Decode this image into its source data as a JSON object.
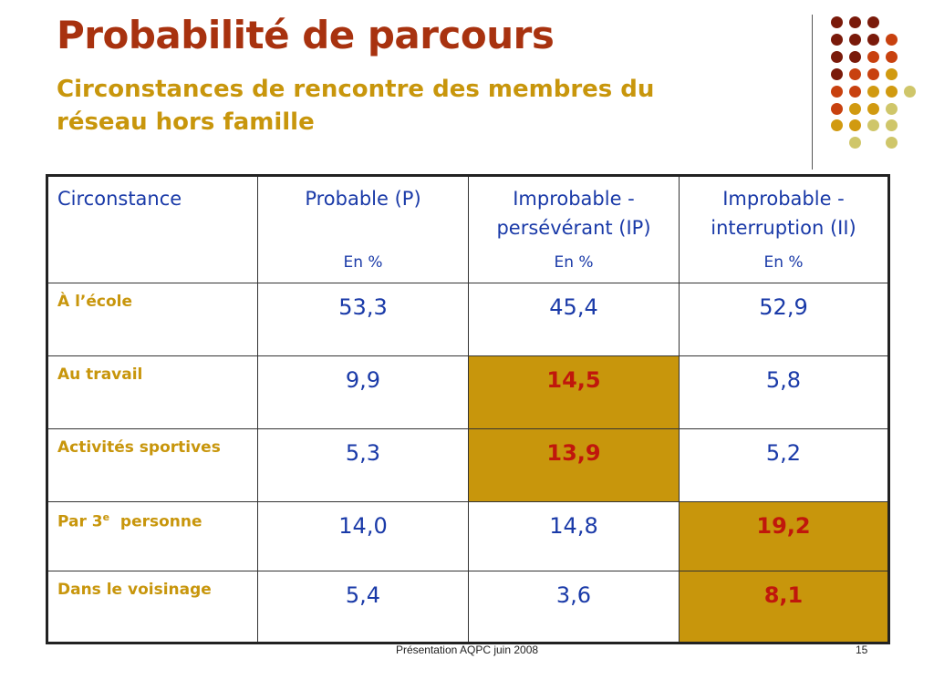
{
  "slide": {
    "title": "Probabilité de parcours",
    "subtitle": "Circonstances de rencontre des membres du réseau hors famille",
    "footer": "Présentation AQPC juin 2008",
    "page_number": "15"
  },
  "colors": {
    "title": "#a8320f",
    "subtitle": "#c8960c",
    "table_text": "#1a3aa8",
    "row_label": "#c8960c",
    "highlight_bg": "#c8960c",
    "highlight_text": "#c0170c",
    "dot_palette": [
      "#7a1a0a",
      "#c8410f",
      "#d19a10",
      "#cfc66a"
    ]
  },
  "table": {
    "headers": [
      {
        "label": "Circonstance",
        "unit": ""
      },
      {
        "label": "Probable (P)",
        "unit": "En %"
      },
      {
        "label": "Improbable - persévérant (IP)",
        "unit": "En %"
      },
      {
        "label": "Improbable - interruption (II)",
        "unit": "En %"
      }
    ],
    "rows": [
      {
        "label": "À l’école",
        "values": [
          "53,3",
          "45,4",
          "52,9"
        ],
        "highlight": [
          false,
          false,
          false
        ]
      },
      {
        "label": "Au travail",
        "values": [
          "9,9",
          "14,5",
          "5,8"
        ],
        "highlight": [
          false,
          true,
          false
        ]
      },
      {
        "label": "Activités sportives",
        "values": [
          "5,3",
          "13,9",
          "5,2"
        ],
        "highlight": [
          false,
          true,
          false
        ]
      },
      {
        "label_pre": "Par 3",
        "label_sup": "e",
        "label_post": "  personne",
        "values": [
          "14,0",
          "14,8",
          "19,2"
        ],
        "highlight": [
          false,
          false,
          true
        ]
      },
      {
        "label": "Dans le voisinage",
        "values": [
          "5,4",
          "3,6",
          "8,1"
        ],
        "highlight": [
          false,
          false,
          true
        ]
      }
    ]
  }
}
